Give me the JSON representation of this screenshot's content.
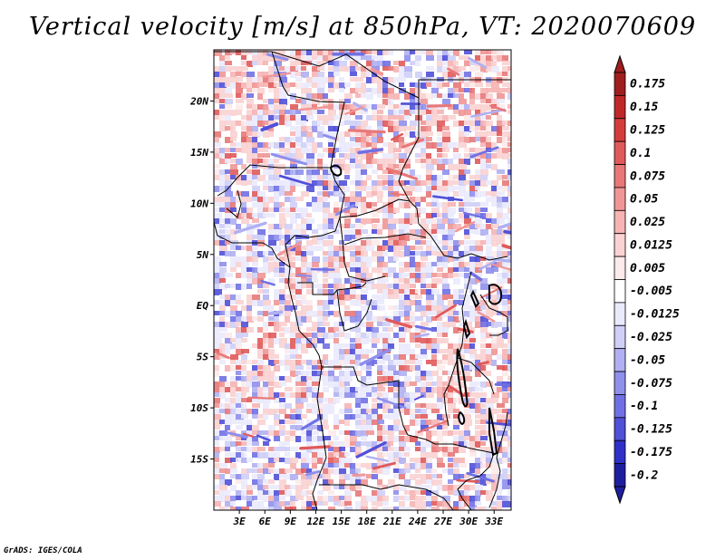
{
  "title": "Vertical velocity [m/s] at 850hPa, VT: 2020070609",
  "credit": "GrADS: IGES/COLA",
  "map": {
    "variable": "Vertical velocity",
    "units": "m/s",
    "level": "850hPa",
    "valid_time": "2020070609",
    "lon_range": [
      0,
      35
    ],
    "lat_range": [
      -20,
      25
    ],
    "lat_ticks": [
      {
        "value": 20,
        "label": "20N"
      },
      {
        "value": 15,
        "label": "15N"
      },
      {
        "value": 10,
        "label": "10N"
      },
      {
        "value": 5,
        "label": "5N"
      },
      {
        "value": 0,
        "label": "EQ"
      },
      {
        "value": -5,
        "label": "5S"
      },
      {
        "value": -10,
        "label": "10S"
      },
      {
        "value": -15,
        "label": "15S"
      }
    ],
    "lon_ticks": [
      {
        "value": 3,
        "label": "3E"
      },
      {
        "value": 6,
        "label": "6E"
      },
      {
        "value": 9,
        "label": "9E"
      },
      {
        "value": 12,
        "label": "12E"
      },
      {
        "value": 15,
        "label": "15E"
      },
      {
        "value": 18,
        "label": "18E"
      },
      {
        "value": 21,
        "label": "21E"
      },
      {
        "value": 24,
        "label": "24E"
      },
      {
        "value": 27,
        "label": "27E"
      },
      {
        "value": 30,
        "label": "30E"
      },
      {
        "value": 33,
        "label": "33E"
      }
    ]
  },
  "colorbar": {
    "levels": [
      {
        "label": "0.175",
        "color": "#a01e1e"
      },
      {
        "label": "0.15",
        "color": "#c02828"
      },
      {
        "label": "0.125",
        "color": "#d43c3c"
      },
      {
        "label": "0.1",
        "color": "#e05a5a"
      },
      {
        "label": "0.075",
        "color": "#e87878"
      },
      {
        "label": "0.05",
        "color": "#f09696"
      },
      {
        "label": "0.025",
        "color": "#f6b4b4"
      },
      {
        "label": "0.0125",
        "color": "#fad2d2"
      },
      {
        "label": "0.005",
        "color": "#fdeaea"
      },
      {
        "label": "-0.005",
        "color": "#ffffff"
      },
      {
        "label": "-0.0125",
        "color": "#eaeafd"
      },
      {
        "label": "-0.025",
        "color": "#cfcff7"
      },
      {
        "label": "-0.05",
        "color": "#b0b0f2"
      },
      {
        "label": "-0.075",
        "color": "#8f8fec"
      },
      {
        "label": "-0.1",
        "color": "#7070e4"
      },
      {
        "label": "-0.125",
        "color": "#5050d8"
      },
      {
        "label": "-0.175",
        "color": "#3030c8"
      },
      {
        "label": "-0.2",
        "color": "#1e1ea0"
      }
    ],
    "over_color": "#a01e1e",
    "under_color": "#1e1ea0"
  }
}
